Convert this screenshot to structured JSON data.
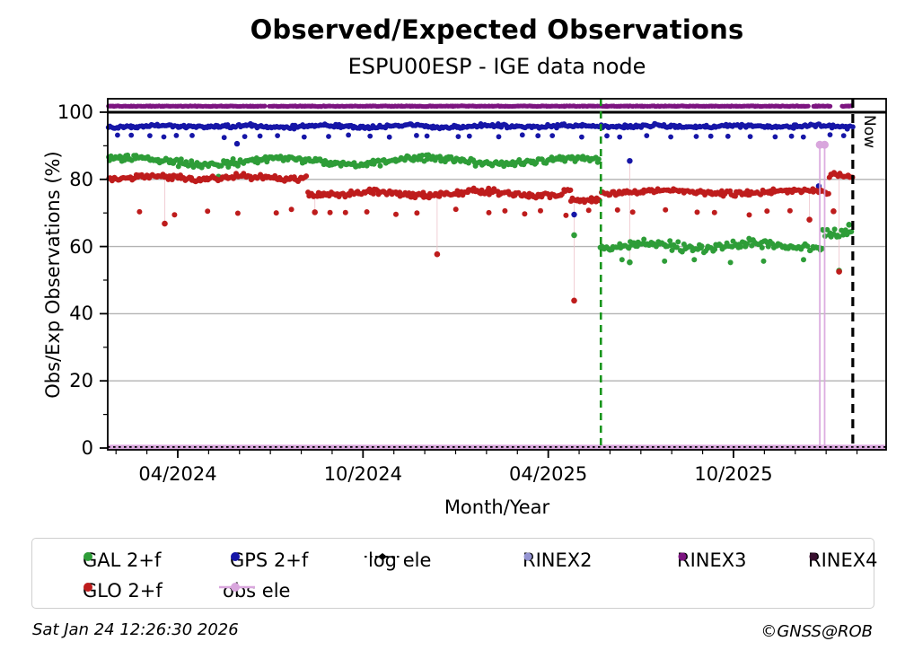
{
  "header": {
    "title": "Observed/Expected Observations",
    "subtitle": "ESPU00ESP - IGE data node"
  },
  "footer": {
    "timestamp": "Sat Jan 24 12:26:30 2026",
    "credit": "©GNSS@ROB"
  },
  "legend": {
    "rows": [
      [
        {
          "id": "gal",
          "label": "GAL 2+f",
          "marker": "dot",
          "color": "#2e9d38"
        },
        {
          "id": "gps",
          "label": "GPS 2+f",
          "marker": "dot",
          "color": "#1616a7"
        },
        {
          "id": "logele",
          "label": "log ele",
          "marker": "dotted-line",
          "color": "#000000"
        },
        {
          "id": "rinex2",
          "label": "RINEX2",
          "marker": "dot-small",
          "color": "#9494d2"
        },
        {
          "id": "rinex3",
          "label": "RINEX3",
          "marker": "dot-small",
          "color": "#7c1580"
        },
        {
          "id": "rinex4",
          "label": "RINEX4",
          "marker": "dot-small",
          "color": "#38102f"
        }
      ],
      [
        {
          "id": "glo",
          "label": "GLO 2+f",
          "marker": "dot",
          "color": "#be1c1c"
        },
        {
          "id": "obsele",
          "label": "obs ele",
          "marker": "line-dot",
          "color": "#d9a6dd"
        }
      ]
    ]
  },
  "chart_data": {
    "type": "scatter",
    "title": "Observed/Expected Observations",
    "subtitle": "ESPU00ESP - IGE data node",
    "xlabel": "Month/Year",
    "ylabel": "Obs/Exp Observations (%)",
    "now_label": "Now",
    "xlim": [
      2024.061,
      2026.162
    ],
    "ylim": [
      -0.53,
      104.0
    ],
    "xticks_major": [
      {
        "v": 2024.25,
        "label": "04/2024"
      },
      {
        "v": 2024.75,
        "label": "10/2024"
      },
      {
        "v": 2025.25,
        "label": "04/2025"
      },
      {
        "v": 2025.75,
        "label": "10/2025"
      }
    ],
    "xminor_step": 0.0833333,
    "yticks_major": [
      0,
      20,
      40,
      60,
      80,
      100
    ],
    "yticks_minor": [
      10,
      30,
      50,
      70,
      90
    ],
    "grid_values": [
      20,
      40,
      60,
      80
    ],
    "grid_color": "#b3b3b3",
    "ref_line": {
      "v": 100,
      "color": "#000000",
      "width": 3
    },
    "series": [
      {
        "name": "RINEX3",
        "color": "#7c1580",
        "r": 2.6,
        "seed": 11,
        "segments": [
          {
            "t0": 2024.063,
            "t1": 2026.072,
            "mean": 101.8,
            "spread": 0.12,
            "step": 0.0032
          }
        ],
        "gaps": [
          [
            2024.487,
            2024.496
          ],
          [
            2025.952,
            2025.965
          ],
          [
            2026.012,
            2026.042
          ]
        ]
      },
      {
        "name": "GPS 2+f",
        "color": "#1616a7",
        "r": 2.9,
        "seed": 21,
        "segments": [
          {
            "t0": 2024.063,
            "t1": 2026.072,
            "mean": 95.8,
            "spread": 0.65,
            "step": 0.0042,
            "wob": 0.25,
            "wfreq": 9
          }
        ],
        "sub": {
          "t0": 2024.09,
          "t1": 2026.06,
          "step": 0.052,
          "mean": 92.9,
          "spread": 0.55
        },
        "outliers": [
          [
            2024.41,
            90.6
          ],
          [
            2025.32,
            69.5
          ],
          [
            2025.47,
            85.5
          ],
          [
            2025.98,
            78.0
          ]
        ]
      },
      {
        "name": "GAL 2+f",
        "color": "#2e9d38",
        "r": 3.0,
        "seed": 31,
        "segments": [
          {
            "t0": 2024.063,
            "t1": 2025.389,
            "mean": 85.4,
            "spread": 1.25,
            "step": 0.0042,
            "wob": 0.9,
            "wfreq": 5
          },
          {
            "t0": 2025.392,
            "t1": 2025.99,
            "mean": 60.2,
            "spread": 1.6,
            "step": 0.0042,
            "wob": 0.7,
            "wfreq": 7
          },
          {
            "t0": 2025.99,
            "t1": 2026.072,
            "mean": 63.8,
            "spread": 1.7,
            "step": 0.0042
          }
        ],
        "sub": {
          "t0": 2025.45,
          "t1": 2025.95,
          "step": 0.075,
          "mean": 55.9,
          "spread": 0.9
        },
        "outliers": [
          [
            2024.36,
            80.8
          ],
          [
            2025.32,
            63.4
          ],
          [
            2025.47,
            55.3
          ],
          [
            2026.035,
            52.8
          ],
          [
            2026.062,
            66.5
          ]
        ]
      },
      {
        "name": "GLO 2+f",
        "color": "#be1c1c",
        "r": 3.0,
        "seed": 41,
        "segments": [
          {
            "t0": 2024.063,
            "t1": 2024.6,
            "mean": 80.5,
            "spread": 1.0,
            "step": 0.0042,
            "wob": 0.4,
            "wfreq": 8
          },
          {
            "t0": 2024.6,
            "t1": 2025.31,
            "mean": 75.8,
            "spread": 1.2,
            "step": 0.0042,
            "wob": 0.6,
            "wfreq": 7
          },
          {
            "t0": 2025.31,
            "t1": 2025.392,
            "mean": 73.8,
            "spread": 0.9,
            "step": 0.0042
          },
          {
            "t0": 2025.392,
            "t1": 2026.008,
            "mean": 76.2,
            "spread": 1.0,
            "step": 0.0042,
            "wob": 0.5,
            "wfreq": 6
          },
          {
            "t0": 2026.008,
            "t1": 2026.05,
            "mean": 81.3,
            "spread": 1.0,
            "step": 0.0042
          },
          {
            "t0": 2026.05,
            "t1": 2026.072,
            "mean": 80.8,
            "spread": 0.7,
            "step": 0.0042
          }
        ],
        "sub": {
          "t0": 2024.15,
          "t1": 2025.95,
          "step": 0.065,
          "mean": 70.3,
          "spread": 1.3
        },
        "outliers": [
          [
            2024.215,
            66.8
          ],
          [
            2024.62,
            70.2
          ],
          [
            2024.95,
            57.7
          ],
          [
            2025.32,
            43.9
          ],
          [
            2025.955,
            68.0
          ],
          [
            2026.02,
            70.5
          ],
          [
            2026.035,
            52.5
          ]
        ]
      },
      {
        "name": "log ele",
        "type": "hline-dotted",
        "v": 0.3,
        "color": "#000000"
      },
      {
        "name": "obs ele",
        "type": "hline",
        "v": 0.3,
        "color": "#d9a6dd",
        "spikes": [
          {
            "t": 2025.983,
            "v": 90.3
          },
          {
            "t": 2025.996,
            "v": 90.3
          }
        ],
        "drops": [
          {
            "t": 2024.215,
            "v1": 66.8,
            "v2": 80.5
          },
          {
            "t": 2024.62,
            "v1": 70.2,
            "v2": 76.0
          },
          {
            "t": 2024.95,
            "v1": 57.7,
            "v2": 75.8
          },
          {
            "t": 2025.32,
            "v1": 43.9,
            "v2": 74.0
          },
          {
            "t": 2025.47,
            "v1": 55.3,
            "v2": 85.8
          },
          {
            "t": 2025.955,
            "v1": 68.0,
            "v2": 76.2
          },
          {
            "t": 2026.035,
            "v1": 52.5,
            "v2": 80.5
          }
        ]
      }
    ],
    "vlines": [
      {
        "t": 2025.392,
        "color": "#18951c",
        "dash": "8 6",
        "width": 2.6,
        "name": "event-line"
      },
      {
        "t": 2026.072,
        "color": "#000000",
        "dash": "10 7",
        "width": 3.2,
        "name": "now-line"
      }
    ]
  }
}
